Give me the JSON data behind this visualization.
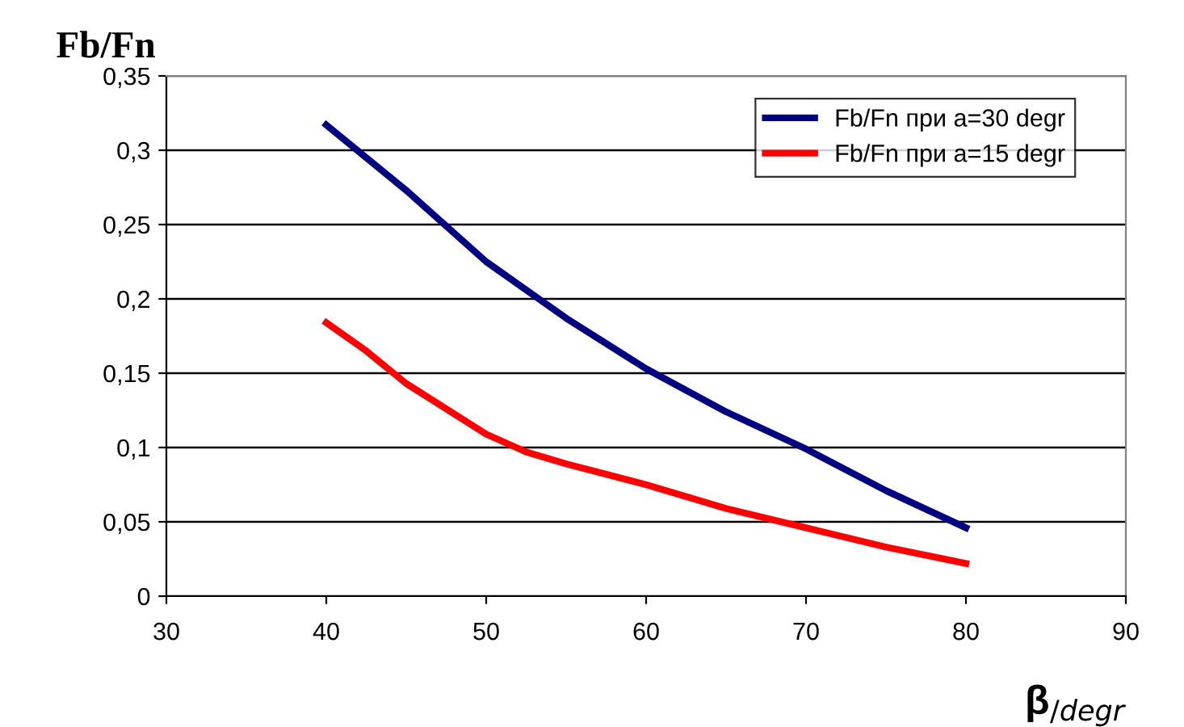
{
  "chart_data": {
    "type": "line",
    "ylabel": "Fb/Fn",
    "xlabel": "β$_{/degr}$",
    "xlim": [
      30,
      90
    ],
    "xticks": [
      30,
      40,
      50,
      60,
      70,
      80,
      90
    ],
    "ylim": [
      0,
      0.35
    ],
    "yticks": [
      {
        "value": 0,
        "label": "0"
      },
      {
        "value": 0.05,
        "label": "0,05"
      },
      {
        "value": 0.1,
        "label": "0,1"
      },
      {
        "value": 0.15,
        "label": "0,15"
      },
      {
        "value": 0.2,
        "label": "0,2"
      },
      {
        "value": 0.25,
        "label": "0,25"
      },
      {
        "value": 0.3,
        "label": "0,3"
      },
      {
        "value": 0.35,
        "label": "0,35"
      }
    ],
    "grid": "y",
    "legend": "top right",
    "marker": "none",
    "line_style": "solid",
    "series": [
      {
        "name": "Fb/Fn при a=30 degr",
        "color": "#000080",
        "x": [
          40,
          45,
          50,
          55,
          60,
          65,
          70,
          75,
          80
        ],
        "values": [
          0.317,
          0.273,
          0.225,
          0.187,
          0.153,
          0.124,
          0.099,
          0.071,
          0.046
        ]
      },
      {
        "name": "Fb/Fn при a=15 degr",
        "color": "#ff0000",
        "x": [
          40,
          42.5,
          45,
          50,
          52.5,
          55,
          60,
          65,
          70,
          75,
          80
        ],
        "values": [
          0.184,
          0.165,
          0.143,
          0.109,
          0.097,
          0.089,
          0.075,
          0.059,
          0.046,
          0.033,
          0.022
        ]
      }
    ]
  }
}
